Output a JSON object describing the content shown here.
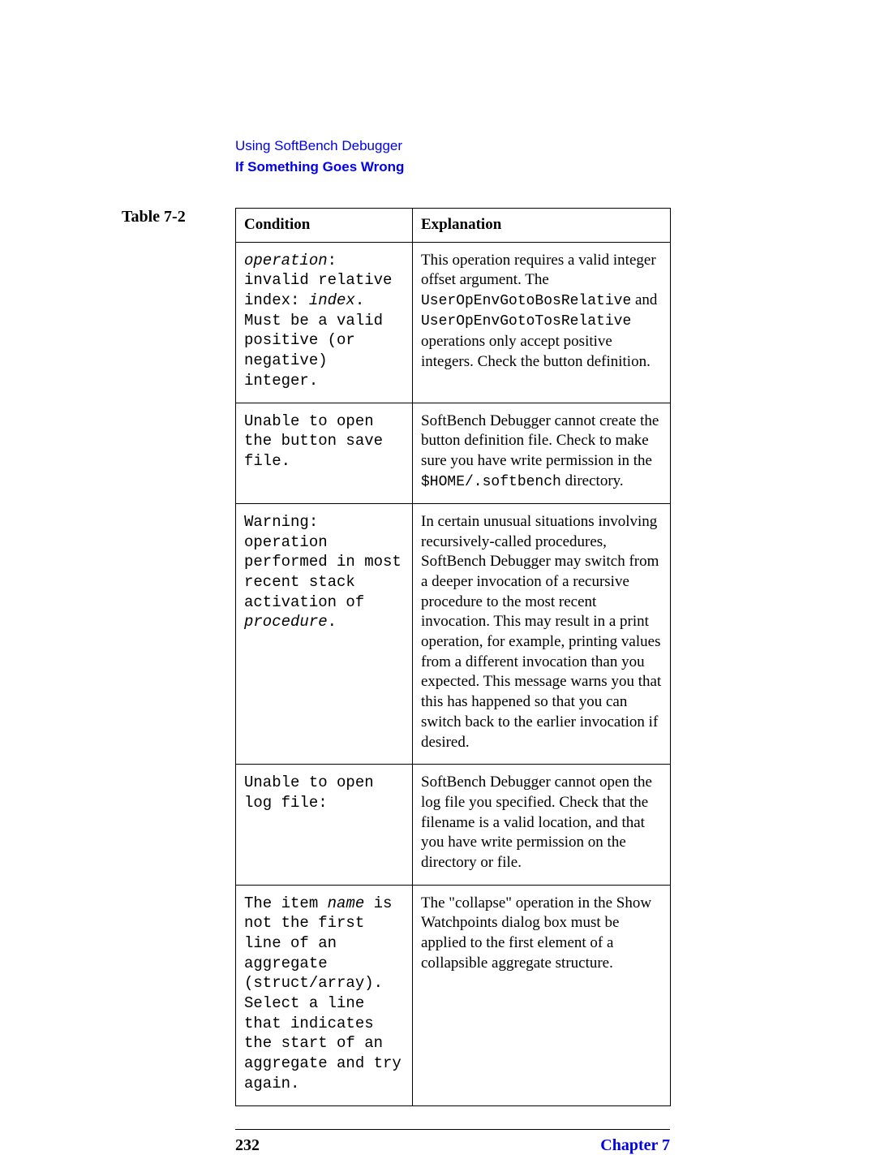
{
  "header": {
    "breadcrumb": "Using SoftBench Debugger",
    "subhead": "If Something Goes Wrong"
  },
  "table": {
    "label": "Table 7-2",
    "columns": [
      "Condition",
      "Explanation"
    ],
    "rows": [
      {
        "condition_parts": {
          "op_label": "operation",
          "after_op": ": invalid relative index: ",
          "index_label": "index",
          "after_index": ". Must be a valid positive (or negative) integer."
        },
        "explanation_parts": {
          "p1": "This operation requires a valid integer offset argument. The ",
          "c1": "UserOpEnvGotoBosRelative",
          "p2": " and ",
          "c2": "UserOpEnvGotoTosRelative",
          "p3": " operations only accept positive integers. Check the button definition."
        }
      },
      {
        "condition_plain": "Unable to open the button save file.",
        "explanation_parts": {
          "p1": "SoftBench Debugger cannot create the button definition file. Check to make sure you have write permission in the ",
          "c1": "$HOME/.softbench",
          "p2": " directory."
        }
      },
      {
        "condition_parts": {
          "pre": "Warning: operation performed in most recent stack activation of ",
          "proc": "procedure",
          "post": "."
        },
        "explanation_plain": "In certain unusual situations involving recursively-called procedures, SoftBench Debugger may switch from a deeper invocation of a recursive procedure to the most recent invocation. This may result in a print operation, for example, printing values from a different invocation than you expected. This message warns you that this has happened so that you can switch back to the earlier invocation if desired."
      },
      {
        "condition_plain": "Unable to open log file:",
        "explanation_plain": "SoftBench Debugger cannot open the log file you specified. Check that the filename is a valid location, and that you have write permission on the directory or file."
      },
      {
        "condition_parts": {
          "pre": "The item ",
          "name": "name",
          "post": " is not the first line of an aggregate (struct/array). Select a line that indicates the start of an aggregate and try again."
        },
        "explanation_plain": "The \"collapse\" operation in the Show Watchpoints dialog box must be applied to the first element of a collapsible aggregate structure."
      }
    ]
  },
  "footer": {
    "page_number": "232",
    "chapter": "Chapter 7"
  }
}
